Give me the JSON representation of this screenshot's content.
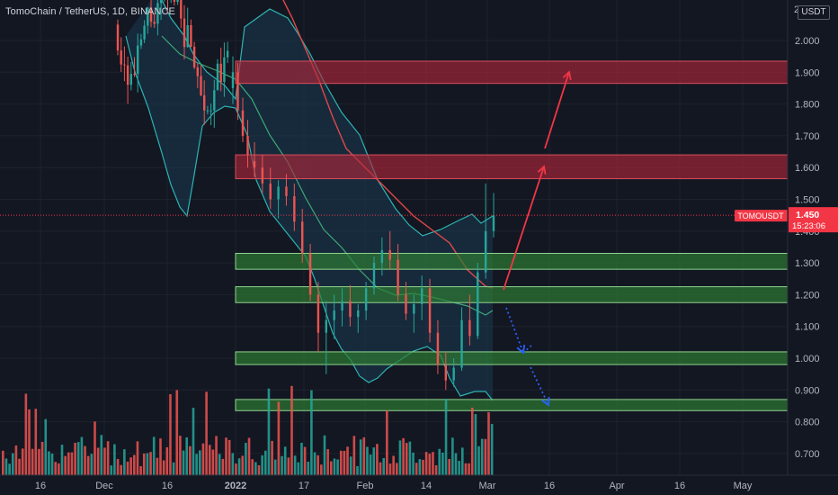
{
  "header": {
    "symbol_title": "TomoChain / TetherUS, 1D, BINANCE"
  },
  "price_scale": {
    "currency": "USDT",
    "top_partial_label": "2"
  },
  "last_price": {
    "symbol": "TOMOUSDT",
    "price": "1.450",
    "countdown": "15:23:06",
    "color": "#f23645"
  },
  "colors": {
    "background": "#131722",
    "up": "#26a69a",
    "down": "#ef5350",
    "resistance_zone": "#b2263a",
    "support_zone": "#2e7d32",
    "bollinger_outer": "#2db3b0",
    "bollinger_fill": "#1a3a52",
    "ma_red": "#e04848",
    "ma_green": "#3fa877",
    "projection_up": "#f23645",
    "projection_down": "#2962ff"
  },
  "chart_data": {
    "type": "candlestick",
    "title": "TomoChain / TetherUS, 1D, BINANCE",
    "ylim": [
      0.62,
      2.08
    ],
    "y_ticks": [
      "2.000",
      "1.900",
      "1.800",
      "1.700",
      "1.600",
      "1.500",
      "1.400",
      "1.300",
      "1.200",
      "1.100",
      "1.000",
      "0.900",
      "0.800",
      "0.700"
    ],
    "x_ticks": [
      "16",
      "Dec",
      "16",
      "2022",
      "17",
      "Feb",
      "14",
      "Mar",
      "16",
      "Apr",
      "16",
      "May"
    ],
    "resistance_zones": [
      [
        1.865,
        1.935
      ],
      [
        1.565,
        1.64
      ]
    ],
    "support_zones": [
      [
        1.28,
        1.33
      ],
      [
        1.175,
        1.225
      ],
      [
        0.98,
        1.02
      ],
      [
        0.835,
        0.87
      ]
    ],
    "candles_late": [
      {
        "o": 1.62,
        "h": 1.68,
        "l": 1.57,
        "c": 1.6
      },
      {
        "o": 1.6,
        "h": 1.64,
        "l": 1.52,
        "c": 1.55
      },
      {
        "o": 1.55,
        "h": 1.6,
        "l": 1.47,
        "c": 1.5
      },
      {
        "o": 1.5,
        "h": 1.56,
        "l": 1.44,
        "c": 1.54
      },
      {
        "o": 1.54,
        "h": 1.58,
        "l": 1.48,
        "c": 1.51
      },
      {
        "o": 1.51,
        "h": 1.55,
        "l": 1.4,
        "c": 1.43
      },
      {
        "o": 1.43,
        "h": 1.47,
        "l": 1.3,
        "c": 1.33
      },
      {
        "o": 1.33,
        "h": 1.36,
        "l": 1.18,
        "c": 1.2
      },
      {
        "o": 1.2,
        "h": 1.24,
        "l": 1.02,
        "c": 1.08
      },
      {
        "o": 1.08,
        "h": 1.18,
        "l": 0.95,
        "c": 1.12
      },
      {
        "o": 1.12,
        "h": 1.2,
        "l": 1.06,
        "c": 1.15
      },
      {
        "o": 1.15,
        "h": 1.22,
        "l": 1.1,
        "c": 1.18
      },
      {
        "o": 1.18,
        "h": 1.23,
        "l": 1.1,
        "c": 1.13
      },
      {
        "o": 1.13,
        "h": 1.17,
        "l": 1.08,
        "c": 1.15
      },
      {
        "o": 1.15,
        "h": 1.24,
        "l": 1.12,
        "c": 1.22
      },
      {
        "o": 1.22,
        "h": 1.32,
        "l": 1.2,
        "c": 1.3
      },
      {
        "o": 1.3,
        "h": 1.38,
        "l": 1.26,
        "c": 1.34
      },
      {
        "o": 1.34,
        "h": 1.4,
        "l": 1.28,
        "c": 1.31
      },
      {
        "o": 1.31,
        "h": 1.36,
        "l": 1.18,
        "c": 1.2
      },
      {
        "o": 1.2,
        "h": 1.24,
        "l": 1.12,
        "c": 1.14
      },
      {
        "o": 1.14,
        "h": 1.2,
        "l": 1.08,
        "c": 1.17
      },
      {
        "o": 1.17,
        "h": 1.26,
        "l": 1.12,
        "c": 1.22
      },
      {
        "o": 1.22,
        "h": 1.25,
        "l": 1.05,
        "c": 1.08
      },
      {
        "o": 1.08,
        "h": 1.12,
        "l": 0.95,
        "c": 0.98
      },
      {
        "o": 0.98,
        "h": 1.02,
        "l": 0.9,
        "c": 0.93
      },
      {
        "o": 0.93,
        "h": 1.0,
        "l": 0.91,
        "c": 0.97
      },
      {
        "o": 0.97,
        "h": 1.16,
        "l": 0.96,
        "c": 1.12
      },
      {
        "o": 1.12,
        "h": 1.2,
        "l": 1.04,
        "c": 1.07
      },
      {
        "o": 1.07,
        "h": 1.3,
        "l": 1.06,
        "c": 1.27
      },
      {
        "o": 1.27,
        "h": 1.55,
        "l": 1.25,
        "c": 1.4
      },
      {
        "o": 1.4,
        "h": 1.52,
        "l": 1.38,
        "c": 1.45
      }
    ]
  }
}
